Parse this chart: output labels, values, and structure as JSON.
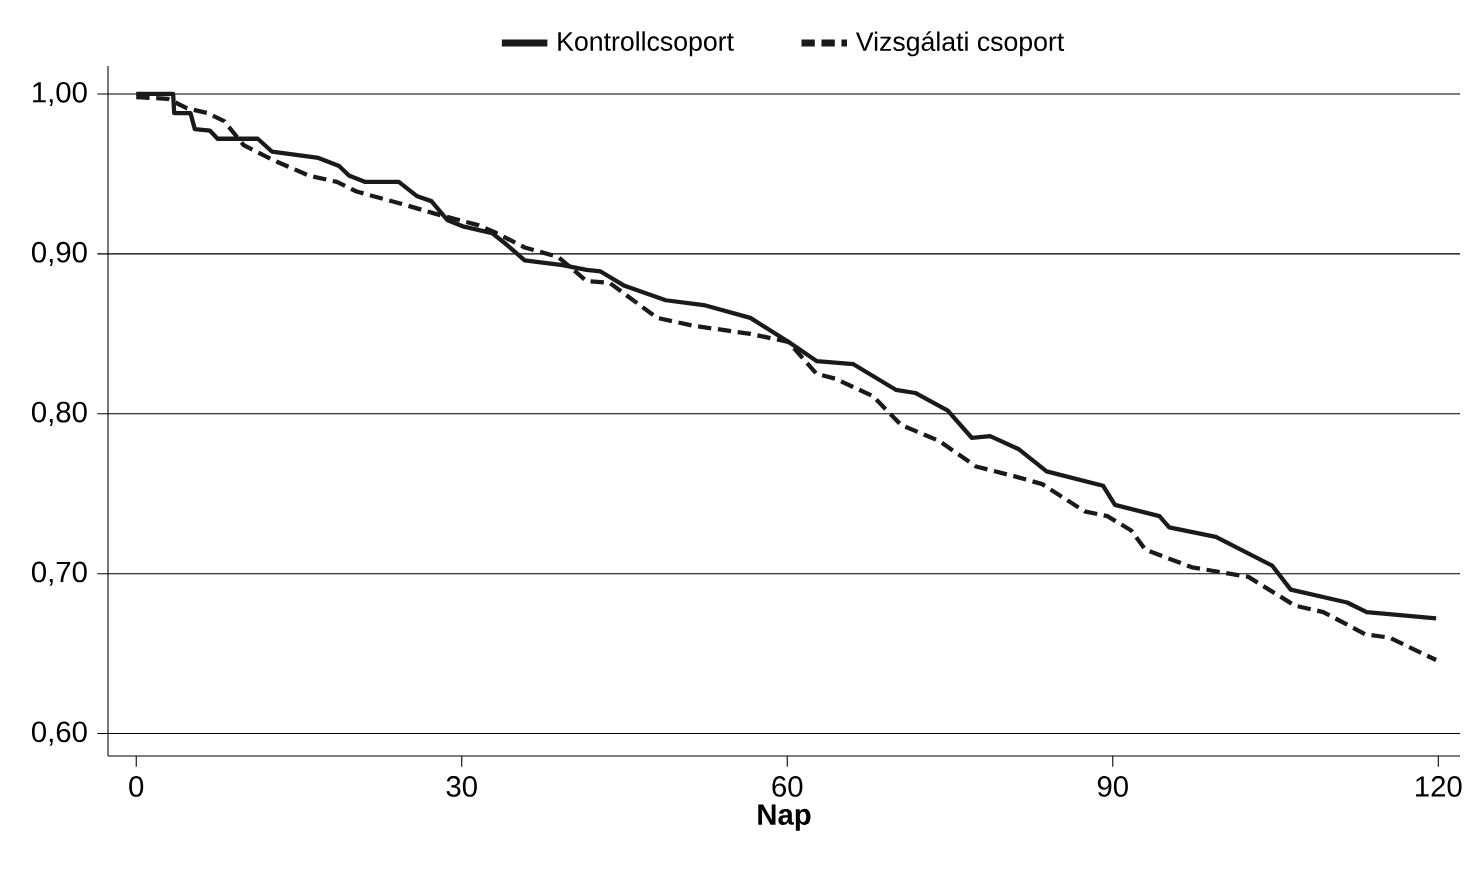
{
  "chart_data": {
    "type": "line",
    "xlabel": "Nap",
    "xlim": [
      -2.6,
      122
    ],
    "ylim": [
      0.586,
      1.0175
    ],
    "xticks": [
      0,
      30,
      60,
      90,
      120
    ],
    "yticks": [
      {
        "value": 0.6,
        "label": "0,60"
      },
      {
        "value": 0.7,
        "label": "0,70"
      },
      {
        "value": 0.8,
        "label": "0,80"
      },
      {
        "value": 0.9,
        "label": "0,90"
      },
      {
        "value": 1.0,
        "label": "1,00"
      }
    ],
    "grid": "y",
    "legend": "top",
    "series": [
      {
        "name": "Kontrollcsoport",
        "color": "#1a1a1a",
        "line_style": "solid",
        "x": [
          0,
          3.4,
          3.5,
          5,
          5.4,
          6.8,
          7.5,
          11.2,
          12.5,
          16.8,
          18.7,
          19.6,
          21.1,
          24.2,
          25.9,
          27.2,
          28.7,
          30.2,
          32.8,
          34.1,
          35.8,
          39.3,
          41.5,
          42.8,
          45,
          48.8,
          52.3,
          56.6,
          60.1,
          62.7,
          66.1,
          70,
          71.8,
          74.8,
          77,
          78.7,
          81.3,
          83.9,
          89.1,
          90.2,
          94.3,
          95.2,
          99.5,
          104.7,
          106.4,
          111.6,
          113.4,
          119.8
        ],
        "values": [
          1.0,
          1.0,
          0.988,
          0.988,
          0.978,
          0.977,
          0.972,
          0.972,
          0.964,
          0.96,
          0.955,
          0.949,
          0.945,
          0.945,
          0.936,
          0.933,
          0.921,
          0.917,
          0.913,
          0.906,
          0.896,
          0.893,
          0.89,
          0.889,
          0.88,
          0.871,
          0.868,
          0.86,
          0.845,
          0.833,
          0.831,
          0.815,
          0.813,
          0.802,
          0.785,
          0.786,
          0.778,
          0.764,
          0.755,
          0.743,
          0.736,
          0.729,
          0.723,
          0.705,
          0.69,
          0.682,
          0.676,
          0.672
        ]
      },
      {
        "name": "Vizsgálati csoport",
        "color": "#1a1a1a",
        "line_style": "dashed",
        "x": [
          0,
          2.9,
          4.7,
          6.6,
          8.1,
          9.9,
          12.5,
          15.9,
          18.5,
          20.3,
          24.6,
          27.6,
          31.5,
          33.2,
          35.8,
          38.9,
          41.5,
          43.6,
          48,
          51.4,
          56.6,
          60.1,
          62.7,
          64.4,
          67.9,
          70.5,
          74,
          77.4,
          80.9,
          83.5,
          87.4,
          89.5,
          91.7,
          93,
          97.3,
          99.9,
          102.5,
          106.8,
          109.4,
          113.3,
          115.5,
          119.8
        ],
        "values": [
          0.998,
          0.997,
          0.991,
          0.988,
          0.983,
          0.968,
          0.959,
          0.949,
          0.945,
          0.939,
          0.931,
          0.925,
          0.918,
          0.913,
          0.904,
          0.898,
          0.883,
          0.882,
          0.86,
          0.855,
          0.85,
          0.845,
          0.825,
          0.822,
          0.811,
          0.793,
          0.783,
          0.767,
          0.761,
          0.756,
          0.739,
          0.736,
          0.727,
          0.715,
          0.704,
          0.701,
          0.698,
          0.68,
          0.676,
          0.662,
          0.66,
          0.646
        ]
      }
    ]
  }
}
